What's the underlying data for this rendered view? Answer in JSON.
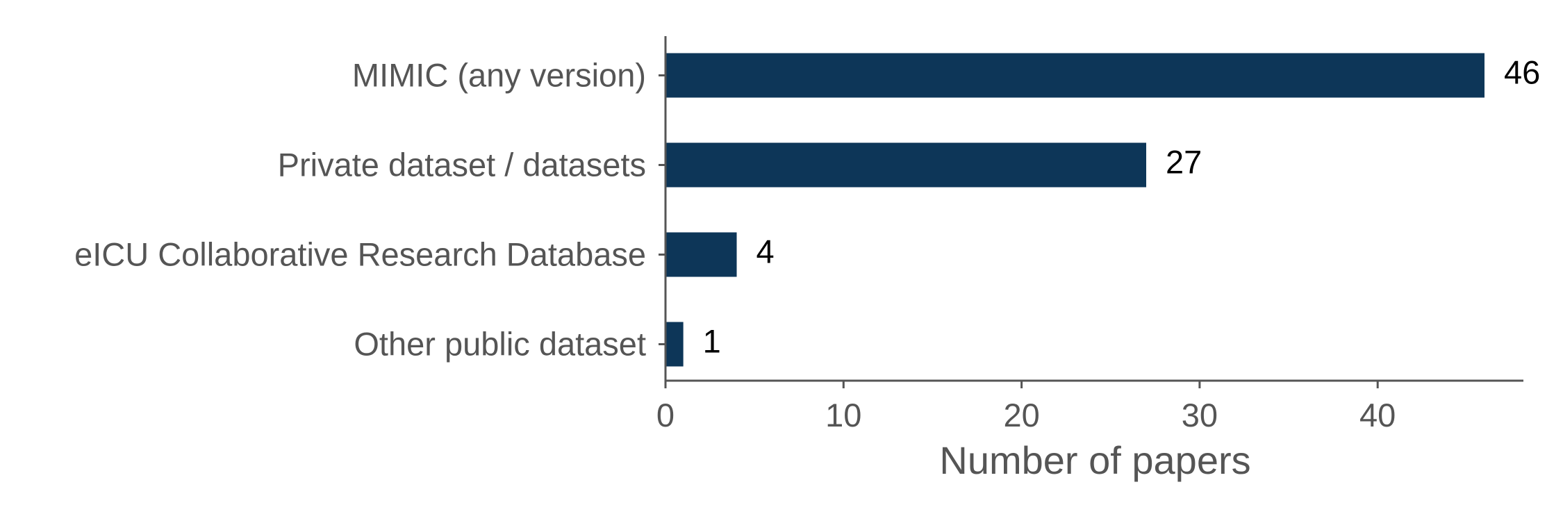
{
  "chart_data": {
    "type": "bar",
    "orientation": "horizontal",
    "categories": [
      "MIMIC (any version)",
      "Private dataset / datasets",
      "eICU Collaborative Research Database",
      "Other public dataset"
    ],
    "values": [
      46,
      27,
      4,
      1
    ],
    "data_labels": [
      "46",
      "27",
      "4",
      "1"
    ],
    "title": "",
    "xlabel": "Number of papers",
    "ylabel": "",
    "xlim": [
      0,
      48
    ],
    "xticks": [
      0,
      10,
      20,
      30,
      40
    ],
    "xtick_labels": [
      "0",
      "10",
      "20",
      "30",
      "40"
    ],
    "grid": false,
    "legend": "none",
    "colors": {
      "bar": "#0d3658",
      "axis": "#555555",
      "text": "#555555",
      "value_text": "#000000"
    }
  }
}
